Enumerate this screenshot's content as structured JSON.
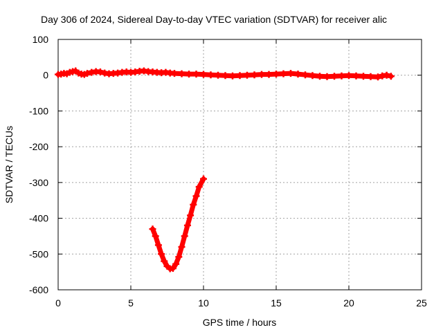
{
  "chart_data": {
    "type": "scatter",
    "title": "Day 306 of 2024, Sidereal Day-to-day VTEC variation (SDTVAR) for receiver alic",
    "xlabel": "GPS time / hours",
    "ylabel": "SDTVAR / TECUs",
    "xlim": [
      0,
      25
    ],
    "ylim": [
      -600,
      100
    ],
    "xticks": [
      0,
      5,
      10,
      15,
      20,
      25
    ],
    "yticks": [
      100,
      0,
      -100,
      -200,
      -300,
      -400,
      -500,
      -600
    ],
    "xtick_labels": [
      "0",
      "5",
      "10",
      "15",
      "20",
      "25"
    ],
    "ytick_labels": [
      "100",
      "0",
      "-100",
      "-200",
      "-300",
      "-400",
      "-500",
      "-600"
    ],
    "grid": true,
    "marker": "plus",
    "series_color": "#ff0000",
    "series": [
      {
        "x": [
          0.0,
          0.2,
          0.4,
          0.6,
          0.8,
          1.0,
          1.2,
          1.4,
          1.6,
          1.8,
          2.0,
          2.3,
          2.6,
          2.9,
          3.2,
          3.5,
          3.8,
          4.1,
          4.4,
          4.7,
          5.0,
          5.3,
          5.6,
          5.9,
          6.2,
          6.5,
          6.8,
          7.1,
          7.4,
          7.7,
          8.0,
          8.5,
          9.0,
          9.5,
          10.0,
          10.5,
          11.0,
          11.5,
          12.0,
          12.5,
          13.0,
          13.5,
          14.0,
          14.5,
          15.0,
          15.5,
          16.0,
          16.5,
          17.0,
          17.5,
          18.0,
          18.5,
          19.0,
          19.5,
          20.0,
          20.5,
          21.0,
          21.5,
          22.0,
          22.3,
          22.6,
          22.9
        ],
        "y": [
          2,
          3,
          5,
          4,
          8,
          10,
          12,
          6,
          3,
          2,
          5,
          8,
          10,
          9,
          6,
          4,
          5,
          6,
          8,
          9,
          8,
          9,
          11,
          12,
          10,
          9,
          8,
          7,
          8,
          6,
          5,
          4,
          3,
          3,
          2,
          1,
          0,
          -1,
          -2,
          -1,
          0,
          1,
          2,
          2,
          3,
          4,
          5,
          3,
          1,
          -1,
          -3,
          -4,
          -3,
          -2,
          -1,
          -2,
          -3,
          -4,
          -5,
          -2,
          0,
          -3
        ]
      },
      {
        "x": [
          6.5,
          6.7,
          6.9,
          7.1,
          7.3,
          7.5,
          7.7,
          7.9,
          8.1,
          8.3,
          8.5,
          8.7,
          8.9,
          9.1,
          9.3,
          9.5,
          9.7,
          10.0
        ],
        "y": [
          -430,
          -450,
          -475,
          -500,
          -520,
          -534,
          -541,
          -540,
          -528,
          -508,
          -480,
          -450,
          -420,
          -392,
          -362,
          -338,
          -312,
          -290
        ]
      }
    ]
  }
}
